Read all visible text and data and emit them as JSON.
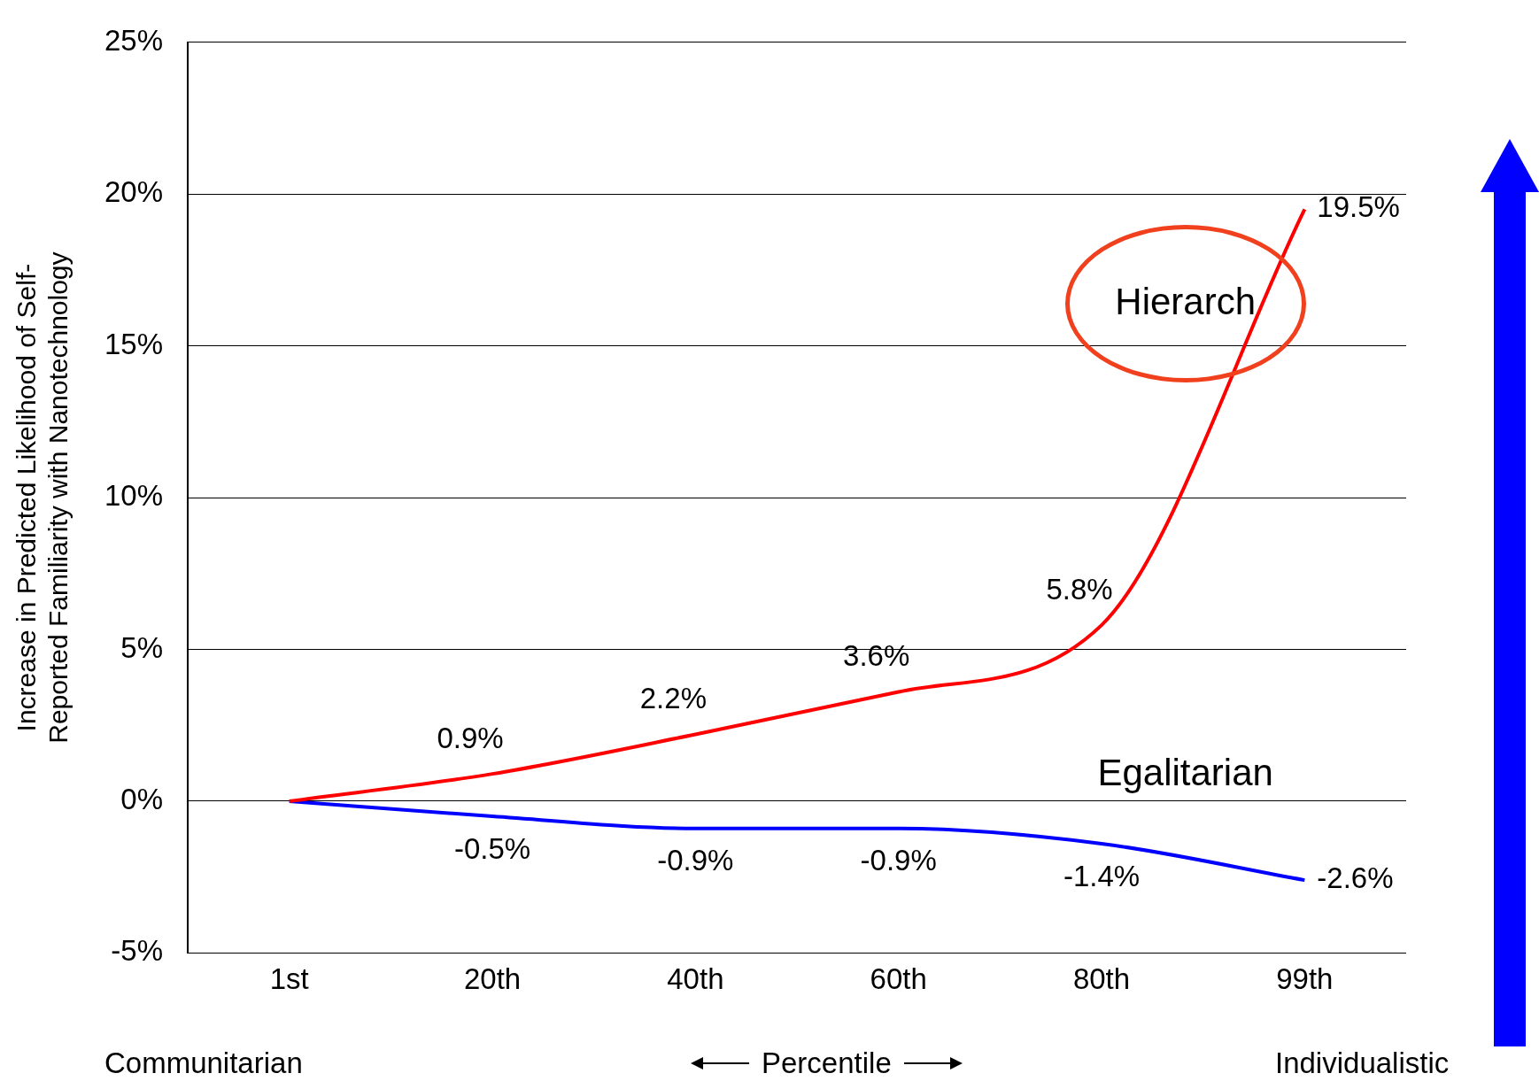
{
  "chart_data": {
    "type": "line",
    "categories": [
      "1st",
      "20th",
      "40th",
      "60th",
      "80th",
      "99th"
    ],
    "series": [
      {
        "name": "Hierarch",
        "color": "#ff0000",
        "values": [
          0,
          0.9,
          2.2,
          3.6,
          5.8,
          19.5
        ],
        "value_labels": [
          null,
          "0.9%",
          "2.2%",
          "3.6%",
          "5.8%",
          "19.5%"
        ]
      },
      {
        "name": "Egalitarian",
        "color": "#0000ff",
        "values": [
          0,
          -0.5,
          -0.9,
          -0.9,
          -1.4,
          -2.6
        ],
        "value_labels": [
          null,
          "-0.5%",
          "-0.9%",
          "-0.9%",
          "-1.4%",
          "-2.6%"
        ]
      }
    ],
    "xlabel": "Percentile",
    "ylabel": "Increase in Predicted Likelihood of Self-Reported Familiarity with Nanotechnology",
    "ylim": [
      -5,
      25
    ],
    "yticks": [
      {
        "value": -5,
        "label": "-5%"
      },
      {
        "value": 0,
        "label": "0%"
      },
      {
        "value": 5,
        "label": "5%"
      },
      {
        "value": 10,
        "label": "10%"
      },
      {
        "value": 15,
        "label": "15%"
      },
      {
        "value": 20,
        "label": "20%"
      },
      {
        "value": 25,
        "label": "25%"
      }
    ],
    "annotations": [
      "Communitarian",
      "Individualistic"
    ],
    "grid": "y",
    "legend": false,
    "marker": "none",
    "line_style": "solid"
  }
}
